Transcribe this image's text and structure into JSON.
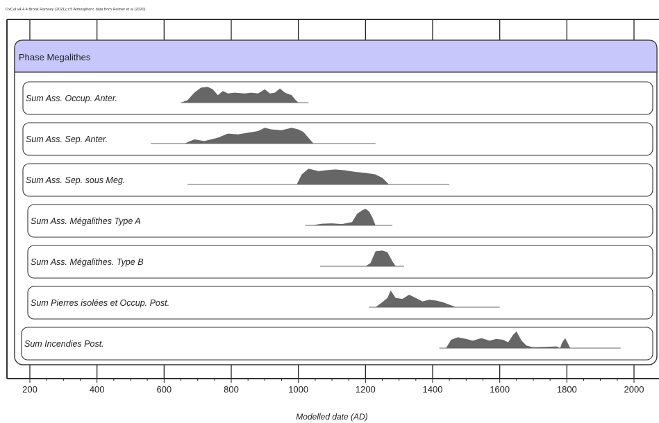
{
  "caption": "OxCal v4.4.4 Bronk Ramsey (2021); r:5 Atmospheric data from Reimer et al (2020)",
  "colors": {
    "phase_fill": "#c7c7fb",
    "distribution_fill": "#666666",
    "range_line": "#666666",
    "grid": "#222222",
    "box_stroke": "#333333"
  },
  "chart_data": {
    "type": "area",
    "title": "",
    "xlabel": "Modelled date (AD)",
    "ylabel": "",
    "xlim": [
      160,
      2060
    ],
    "xticks": [
      200,
      400,
      600,
      800,
      1000,
      1200,
      1400,
      1600,
      1800,
      2000
    ],
    "grid": true,
    "phase": {
      "name": "Phase Megalithes"
    },
    "series": [
      {
        "name": "Sum Ass. Occup. Anter.",
        "range": [
          650,
          1030
        ],
        "points": [
          [
            650,
            0
          ],
          [
            670,
            0.15
          ],
          [
            690,
            0.6
          ],
          [
            710,
            0.9
          ],
          [
            730,
            0.95
          ],
          [
            745,
            0.8
          ],
          [
            760,
            0.45
          ],
          [
            775,
            0.7
          ],
          [
            790,
            0.55
          ],
          [
            810,
            0.6
          ],
          [
            840,
            0.55
          ],
          [
            860,
            0.6
          ],
          [
            880,
            0.55
          ],
          [
            900,
            0.8
          ],
          [
            915,
            0.55
          ],
          [
            930,
            0.6
          ],
          [
            945,
            0.85
          ],
          [
            960,
            0.6
          ],
          [
            980,
            0.45
          ],
          [
            990,
            0.2
          ],
          [
            1000,
            0
          ]
        ]
      },
      {
        "name": "Sum Ass. Sep. Anter.",
        "range": [
          560,
          1230
        ],
        "points": [
          [
            660,
            0
          ],
          [
            690,
            0.25
          ],
          [
            720,
            0.15
          ],
          [
            760,
            0.35
          ],
          [
            790,
            0.6
          ],
          [
            820,
            0.55
          ],
          [
            850,
            0.65
          ],
          [
            880,
            0.75
          ],
          [
            900,
            0.95
          ],
          [
            920,
            0.85
          ],
          [
            950,
            0.8
          ],
          [
            980,
            0.95
          ],
          [
            1000,
            0.85
          ],
          [
            1015,
            0.7
          ],
          [
            1030,
            0.35
          ],
          [
            1045,
            0
          ]
        ]
      },
      {
        "name": "Sum Ass. Sep. sous Meg.",
        "range": [
          670,
          1450
        ],
        "points": [
          [
            995,
            0
          ],
          [
            1010,
            0.6
          ],
          [
            1030,
            0.95
          ],
          [
            1060,
            0.8
          ],
          [
            1080,
            0.85
          ],
          [
            1110,
            0.9
          ],
          [
            1140,
            0.85
          ],
          [
            1170,
            0.75
          ],
          [
            1200,
            0.7
          ],
          [
            1230,
            0.6
          ],
          [
            1250,
            0.4
          ],
          [
            1270,
            0
          ]
        ]
      },
      {
        "name": "Sum Ass. Mégalithes Type A",
        "range": [
          1020,
          1280
        ],
        "points": [
          [
            1040,
            0
          ],
          [
            1070,
            0.1
          ],
          [
            1100,
            0.12
          ],
          [
            1130,
            0.08
          ],
          [
            1160,
            0.2
          ],
          [
            1175,
            0.7
          ],
          [
            1190,
            0.9
          ],
          [
            1200,
            1.0
          ],
          [
            1210,
            0.85
          ],
          [
            1220,
            0.5
          ],
          [
            1230,
            0
          ]
        ]
      },
      {
        "name": "Sum Ass. Mégalithes. Type B",
        "range": [
          1065,
          1315
        ],
        "points": [
          [
            1200,
            0
          ],
          [
            1215,
            0.2
          ],
          [
            1230,
            0.9
          ],
          [
            1250,
            0.95
          ],
          [
            1265,
            0.85
          ],
          [
            1280,
            0.3
          ],
          [
            1290,
            0
          ]
        ]
      },
      {
        "name": "Sum Pierres isolées et Occup. Post.",
        "range": [
          1210,
          1600
        ],
        "points": [
          [
            1230,
            0
          ],
          [
            1250,
            0.3
          ],
          [
            1265,
            0.55
          ],
          [
            1275,
            1.0
          ],
          [
            1290,
            0.55
          ],
          [
            1310,
            0.5
          ],
          [
            1330,
            0.75
          ],
          [
            1350,
            0.55
          ],
          [
            1370,
            0.35
          ],
          [
            1390,
            0.45
          ],
          [
            1410,
            0.4
          ],
          [
            1430,
            0.3
          ],
          [
            1450,
            0.15
          ],
          [
            1470,
            0
          ]
        ]
      },
      {
        "name": "Sum Incendies Post.",
        "range": [
          1420,
          1960
        ],
        "points": [
          [
            1440,
            0
          ],
          [
            1455,
            0.5
          ],
          [
            1475,
            0.65
          ],
          [
            1500,
            0.55
          ],
          [
            1520,
            0.45
          ],
          [
            1545,
            0.6
          ],
          [
            1570,
            0.45
          ],
          [
            1590,
            0.55
          ],
          [
            1610,
            0.5
          ],
          [
            1625,
            0.35
          ],
          [
            1640,
            0.8
          ],
          [
            1650,
            1.0
          ],
          [
            1665,
            0.45
          ],
          [
            1680,
            0.15
          ],
          [
            1700,
            0.05
          ],
          [
            1770,
            0.1
          ],
          [
            1780,
            0
          ],
          [
            1785,
            0.3
          ],
          [
            1795,
            0.6
          ],
          [
            1805,
            0.2
          ],
          [
            1810,
            0
          ]
        ]
      }
    ]
  }
}
